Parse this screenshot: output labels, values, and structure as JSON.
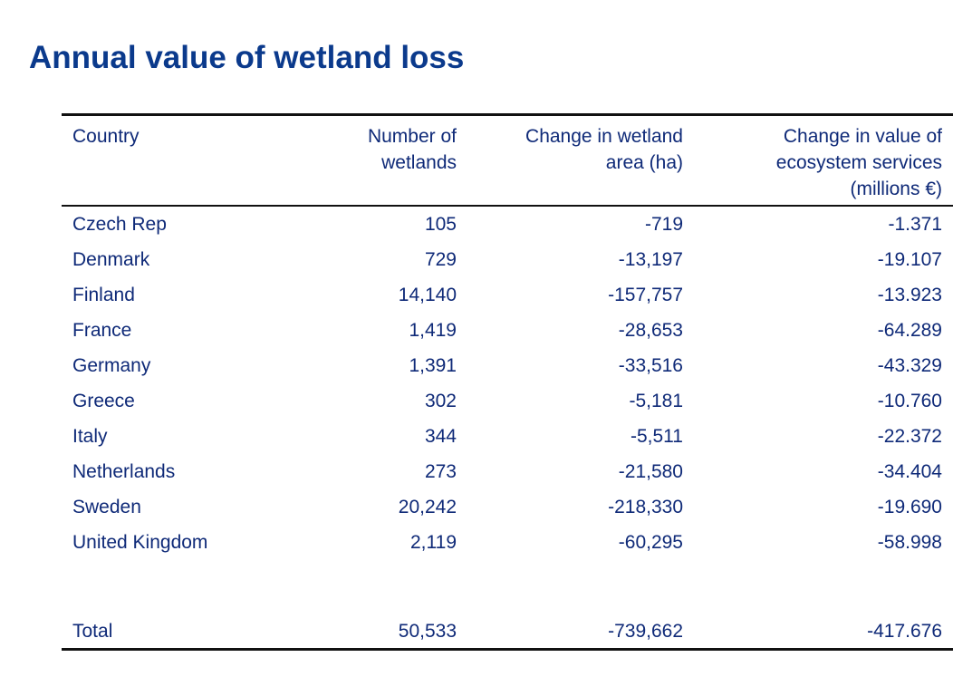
{
  "title": "Annual value of wetland loss",
  "table": {
    "headers": {
      "country": "Country",
      "num_wetlands": [
        "Number of",
        "wetlands"
      ],
      "area_change": [
        "Change in wetland",
        "area (ha)"
      ],
      "value_change": [
        "Change in value of",
        "ecosystem services",
        "(millions €)"
      ]
    },
    "rows": [
      {
        "country": "Czech Rep",
        "num": "105",
        "area": "-719",
        "value": "-1.371"
      },
      {
        "country": "Denmark",
        "num": "729",
        "area": "-13,197",
        "value": "-19.107"
      },
      {
        "country": "Finland",
        "num": "14,140",
        "area": "-157,757",
        "value": "-13.923"
      },
      {
        "country": "France",
        "num": "1,419",
        "area": "-28,653",
        "value": "-64.289"
      },
      {
        "country": "Germany",
        "num": "1,391",
        "area": "-33,516",
        "value": "-43.329"
      },
      {
        "country": "Greece",
        "num": "302",
        "area": "-5,181",
        "value": "-10.760"
      },
      {
        "country": "Italy",
        "num": "344",
        "area": "-5,511",
        "value": "-22.372"
      },
      {
        "country": "Netherlands",
        "num": "273",
        "area": "-21,580",
        "value": "-34.404"
      },
      {
        "country": "Sweden",
        "num": "20,242",
        "area": "-218,330",
        "value": "-19.690"
      },
      {
        "country": "United Kingdom",
        "num": "2,119",
        "area": "-60,295",
        "value": "-58.998"
      }
    ],
    "total": {
      "label": "Total",
      "num": "50,533",
      "area": "-739,662",
      "value": "-417.676"
    }
  }
}
